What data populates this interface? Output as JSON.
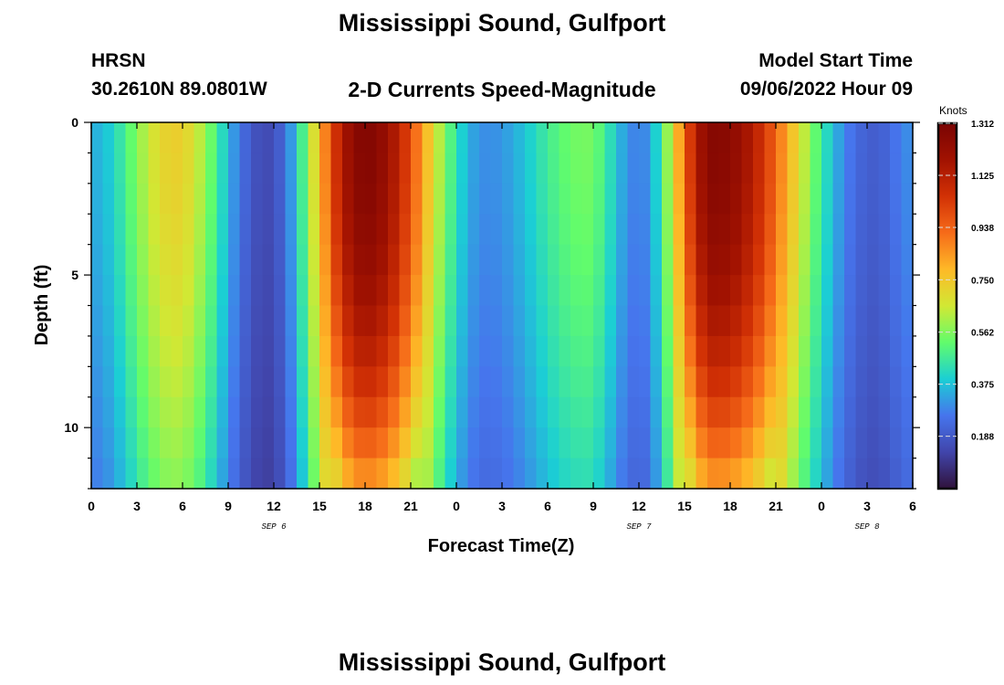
{
  "page": {
    "title": "Mississippi Sound, Gulfport",
    "footer_title": "Mississippi Sound, Gulfport",
    "station_id": "HRSN",
    "coords": "30.2610N  89.0801W",
    "subtitle": "2-D Currents Speed-Magnitude",
    "model_label": "Model Start Time",
    "model_time": "09/06/2022 Hour 09"
  },
  "chart_data": {
    "type": "heatmap",
    "title": "2-D Currents Speed-Magnitude",
    "xlabel": "Forecast Time(Z)",
    "ylabel": "Depth (ft)",
    "x_range_hours": [
      0,
      54
    ],
    "x_ticks": [
      "0",
      "3",
      "6",
      "9",
      "12",
      "15",
      "18",
      "21",
      "0",
      "3",
      "6",
      "9",
      "12",
      "15",
      "18",
      "21",
      "0",
      "3",
      "6"
    ],
    "date_labels": [
      {
        "label": "SEP 6",
        "at_hour": 12
      },
      {
        "label": "SEP 7",
        "at_hour": 36
      },
      {
        "label": "SEP 8",
        "at_hour": 51
      }
    ],
    "y_range_ft": [
      0,
      12
    ],
    "y_reversed": true,
    "y_ticks": [
      "0",
      "5",
      "10"
    ],
    "colorbar": {
      "unit": "Knots",
      "range": [
        0,
        1.312
      ],
      "ticks": [
        "1.312",
        "1.125",
        "0.938",
        "0.750",
        "0.562",
        "0.375",
        "0.188"
      ],
      "tick_values": [
        1.312,
        1.125,
        0.938,
        0.75,
        0.562,
        0.375,
        0.188
      ]
    },
    "speed_peaks_knots": [
      {
        "hour": 5.5,
        "surface": 0.73
      },
      {
        "hour": 18,
        "surface": 1.28
      },
      {
        "hour": 32.5,
        "surface": 0.55
      },
      {
        "hour": 41,
        "surface": 1.27
      }
    ],
    "speed_lows_knots": [
      {
        "hour": 11.5,
        "surface": 0.15
      },
      {
        "hour": 26,
        "surface": 0.3
      },
      {
        "hour": 36,
        "surface": 0.28
      },
      {
        "hour": 51.5,
        "surface": 0.2
      }
    ]
  }
}
